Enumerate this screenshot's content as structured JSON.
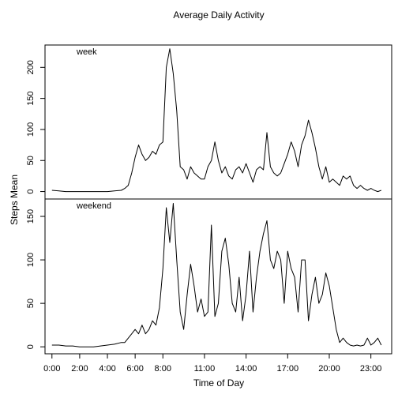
{
  "chart_data": {
    "type": "line",
    "title": "Average Daily Activity",
    "xlabel": "Time of Day",
    "ylabel": "Steps Mean",
    "x_unit": "hour of day",
    "xlim": [
      -0.5,
      24.5
    ],
    "x_ticks": [
      {
        "x": 0,
        "label": "0:00"
      },
      {
        "x": 2,
        "label": "2:00"
      },
      {
        "x": 4,
        "label": "4:00"
      },
      {
        "x": 6,
        "label": "6:00"
      },
      {
        "x": 8,
        "label": "8:00"
      },
      {
        "x": 11,
        "label": "11:00"
      },
      {
        "x": 14,
        "label": "14:00"
      },
      {
        "x": 17,
        "label": "17:00"
      },
      {
        "x": 20,
        "label": "20:00"
      },
      {
        "x": 23,
        "label": "23:00"
      }
    ],
    "grid": false,
    "panels": [
      {
        "label": "week",
        "ylim": [
          -12,
          236
        ],
        "y_ticks": [
          0,
          50,
          100,
          150,
          200
        ],
        "series": [
          {
            "x": [
              0.0,
              0.5,
              1.0,
              1.5,
              2.0,
              2.5,
              3.0,
              3.5,
              4.0,
              4.5,
              5.0,
              5.25,
              5.5,
              5.75,
              6.0,
              6.25,
              6.5,
              6.75,
              7.0,
              7.25,
              7.5,
              7.75,
              8.0,
              8.25,
              8.5,
              8.75,
              9.0,
              9.25,
              9.5,
              9.75,
              10.0,
              10.25,
              10.5,
              10.75,
              11.0,
              11.25,
              11.5,
              11.75,
              12.0,
              12.25,
              12.5,
              12.75,
              13.0,
              13.25,
              13.5,
              13.75,
              14.0,
              14.25,
              14.5,
              14.75,
              15.0,
              15.25,
              15.5,
              15.75,
              16.0,
              16.25,
              16.5,
              16.75,
              17.0,
              17.25,
              17.5,
              17.75,
              18.0,
              18.25,
              18.5,
              18.75,
              19.0,
              19.25,
              19.5,
              19.75,
              20.0,
              20.25,
              20.5,
              20.75,
              21.0,
              21.25,
              21.5,
              21.75,
              22.0,
              22.25,
              22.5,
              22.75,
              23.0,
              23.25,
              23.5,
              23.75
            ],
            "y": [
              2,
              1,
              0,
              0,
              0,
              0,
              0,
              0,
              0,
              1,
              2,
              5,
              10,
              30,
              55,
              75,
              60,
              50,
              55,
              65,
              60,
              75,
              80,
              200,
              230,
              190,
              130,
              40,
              35,
              20,
              40,
              30,
              25,
              20,
              20,
              40,
              50,
              80,
              50,
              30,
              40,
              25,
              20,
              35,
              40,
              30,
              45,
              30,
              15,
              35,
              40,
              35,
              95,
              40,
              30,
              25,
              30,
              45,
              60,
              80,
              65,
              40,
              75,
              90,
              115,
              95,
              70,
              40,
              20,
              40,
              15,
              20,
              15,
              10,
              25,
              20,
              25,
              10,
              5,
              10,
              5,
              2,
              5,
              2,
              0,
              2
            ]
          }
        ]
      },
      {
        "label": "weekend",
        "ylim": [
          -8,
          170
        ],
        "y_ticks": [
          0,
          50,
          100,
          150
        ],
        "series": [
          {
            "x": [
              0.0,
              0.5,
              1.0,
              1.5,
              2.0,
              2.5,
              3.0,
              3.5,
              4.0,
              4.5,
              5.0,
              5.25,
              5.5,
              5.75,
              6.0,
              6.25,
              6.5,
              6.75,
              7.0,
              7.25,
              7.5,
              7.75,
              8.0,
              8.25,
              8.5,
              8.75,
              9.0,
              9.25,
              9.5,
              9.75,
              10.0,
              10.25,
              10.5,
              10.75,
              11.0,
              11.25,
              11.5,
              11.75,
              12.0,
              12.25,
              12.5,
              12.75,
              13.0,
              13.25,
              13.5,
              13.75,
              14.0,
              14.25,
              14.5,
              14.75,
              15.0,
              15.25,
              15.5,
              15.75,
              16.0,
              16.25,
              16.5,
              16.75,
              17.0,
              17.25,
              17.5,
              17.75,
              18.0,
              18.25,
              18.5,
              18.75,
              19.0,
              19.25,
              19.5,
              19.75,
              20.0,
              20.25,
              20.5,
              20.75,
              21.0,
              21.25,
              21.5,
              21.75,
              22.0,
              22.25,
              22.5,
              22.75,
              23.0,
              23.25,
              23.5,
              23.75
            ],
            "y": [
              2,
              2,
              1,
              1,
              0,
              0,
              0,
              1,
              2,
              3,
              5,
              5,
              10,
              15,
              20,
              15,
              25,
              15,
              20,
              30,
              25,
              45,
              90,
              160,
              120,
              165,
              100,
              40,
              20,
              60,
              95,
              70,
              40,
              55,
              35,
              40,
              140,
              35,
              50,
              110,
              125,
              95,
              50,
              40,
              80,
              30,
              60,
              110,
              40,
              80,
              110,
              130,
              145,
              100,
              90,
              110,
              100,
              50,
              110,
              90,
              80,
              40,
              100,
              100,
              30,
              60,
              80,
              50,
              60,
              85,
              70,
              45,
              20,
              5,
              10,
              5,
              2,
              1,
              2,
              1,
              2,
              10,
              2,
              5,
              10,
              2
            ]
          }
        ]
      }
    ]
  }
}
